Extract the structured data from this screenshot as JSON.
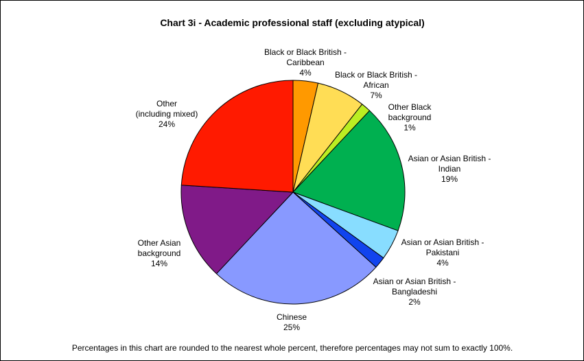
{
  "chart_data": {
    "type": "pie",
    "title": "Chart 3i - Academic professional staff (excluding atypical)",
    "footnote": "Percentages in this chart are rounded to the nearest whole percent, therefore percentages may not sum to exactly 100%.",
    "slices": [
      {
        "label_lines": [
          "Black or Black British -",
          "Caribbean"
        ],
        "pct_label": "4%",
        "value": 3.6,
        "color": "#ff9900"
      },
      {
        "label_lines": [
          "Black or Black British -",
          "African"
        ],
        "pct_label": "7%",
        "value": 7.0,
        "color": "#ffdd55"
      },
      {
        "label_lines": [
          "Other Black",
          "background"
        ],
        "pct_label": "1%",
        "value": 1.4,
        "color": "#bbee22"
      },
      {
        "label_lines": [
          "Asian or Asian British -",
          "Indian"
        ],
        "pct_label": "19%",
        "value": 18.6,
        "color": "#00b050"
      },
      {
        "label_lines": [
          "Asian or Asian British -",
          "Pakistani"
        ],
        "pct_label": "4%",
        "value": 4.4,
        "color": "#88ddff"
      },
      {
        "label_lines": [
          "Asian or Asian British -",
          "Bangladeshi"
        ],
        "pct_label": "2%",
        "value": 1.7,
        "color": "#1144ee"
      },
      {
        "label_lines": [
          "Chinese"
        ],
        "pct_label": "25%",
        "value": 25.3,
        "color": "#8899ff"
      },
      {
        "label_lines": [
          "Other Asian",
          "background"
        ],
        "pct_label": "14%",
        "value": 14.0,
        "color": "#801a88"
      },
      {
        "label_lines": [
          "Other",
          "(including mixed)"
        ],
        "pct_label": "24%",
        "value": 24.0,
        "color": "#ff1a00"
      }
    ]
  }
}
